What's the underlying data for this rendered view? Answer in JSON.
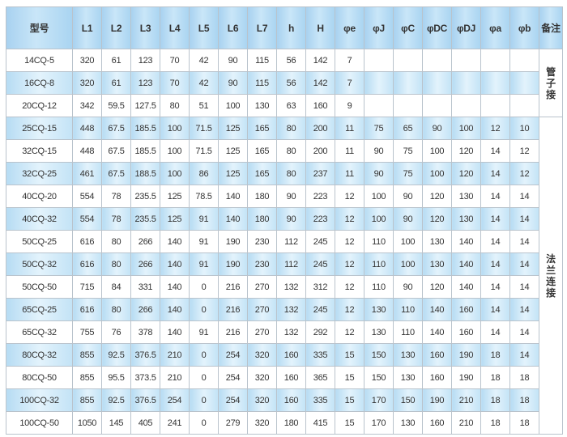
{
  "headers": [
    "型号",
    "L1",
    "L2",
    "L3",
    "L4",
    "L5",
    "L6",
    "L7",
    "h",
    "H",
    "φe",
    "φJ",
    "φC",
    "φDC",
    "φDJ",
    "φa",
    "φb",
    "备注"
  ],
  "remarks": [
    {
      "label": "管子接",
      "rows": 3
    },
    {
      "label": "法兰连接",
      "rows": 14
    }
  ],
  "rows": [
    [
      "14CQ-5",
      "320",
      "61",
      "123",
      "70",
      "42",
      "90",
      "115",
      "56",
      "142",
      "7",
      "",
      "",
      "",
      "",
      "",
      ""
    ],
    [
      "16CQ-8",
      "320",
      "61",
      "123",
      "70",
      "42",
      "90",
      "115",
      "56",
      "142",
      "7",
      "",
      "",
      "",
      "",
      "",
      ""
    ],
    [
      "20CQ-12",
      "342",
      "59.5",
      "127.5",
      "80",
      "51",
      "100",
      "130",
      "63",
      "160",
      "9",
      "",
      "",
      "",
      "",
      "",
      ""
    ],
    [
      "25CQ-15",
      "448",
      "67.5",
      "185.5",
      "100",
      "71.5",
      "125",
      "165",
      "80",
      "200",
      "11",
      "75",
      "65",
      "90",
      "100",
      "12",
      "10"
    ],
    [
      "32CQ-15",
      "448",
      "67.5",
      "185.5",
      "100",
      "71.5",
      "125",
      "165",
      "80",
      "200",
      "11",
      "90",
      "75",
      "100",
      "120",
      "14",
      "12"
    ],
    [
      "32CQ-25",
      "461",
      "67.5",
      "188.5",
      "100",
      "86",
      "125",
      "165",
      "80",
      "237",
      "11",
      "90",
      "75",
      "100",
      "120",
      "14",
      "12"
    ],
    [
      "40CQ-20",
      "554",
      "78",
      "235.5",
      "125",
      "78.5",
      "140",
      "180",
      "90",
      "223",
      "12",
      "100",
      "90",
      "120",
      "130",
      "14",
      "14"
    ],
    [
      "40CQ-32",
      "554",
      "78",
      "235.5",
      "125",
      "91",
      "140",
      "180",
      "90",
      "223",
      "12",
      "100",
      "90",
      "120",
      "130",
      "14",
      "14"
    ],
    [
      "50CQ-25",
      "616",
      "80",
      "266",
      "140",
      "91",
      "190",
      "230",
      "112",
      "245",
      "12",
      "110",
      "100",
      "130",
      "140",
      "14",
      "14"
    ],
    [
      "50CQ-32",
      "616",
      "80",
      "266",
      "140",
      "91",
      "190",
      "230",
      "112",
      "245",
      "12",
      "110",
      "100",
      "130",
      "140",
      "14",
      "14"
    ],
    [
      "50CQ-50",
      "715",
      "84",
      "331",
      "140",
      "0",
      "216",
      "270",
      "132",
      "312",
      "12",
      "110",
      "90",
      "120",
      "140",
      "14",
      "14"
    ],
    [
      "65CQ-25",
      "616",
      "80",
      "266",
      "140",
      "0",
      "216",
      "270",
      "132",
      "245",
      "12",
      "130",
      "110",
      "140",
      "160",
      "14",
      "14"
    ],
    [
      "65CQ-32",
      "755",
      "76",
      "378",
      "140",
      "91",
      "216",
      "270",
      "132",
      "292",
      "12",
      "130",
      "110",
      "140",
      "160",
      "14",
      "14"
    ],
    [
      "80CQ-32",
      "855",
      "92.5",
      "376.5",
      "210",
      "0",
      "254",
      "320",
      "160",
      "335",
      "15",
      "150",
      "130",
      "160",
      "190",
      "18",
      "14"
    ],
    [
      "80CQ-50",
      "855",
      "95.5",
      "373.5",
      "210",
      "0",
      "254",
      "320",
      "160",
      "365",
      "15",
      "150",
      "130",
      "160",
      "190",
      "18",
      "18"
    ],
    [
      "100CQ-32",
      "855",
      "92.5",
      "376.5",
      "254",
      "0",
      "254",
      "320",
      "160",
      "335",
      "15",
      "170",
      "150",
      "190",
      "210",
      "18",
      "18"
    ],
    [
      "100CQ-50",
      "1050",
      "145",
      "405",
      "241",
      "0",
      "279",
      "320",
      "180",
      "415",
      "15",
      "170",
      "130",
      "160",
      "210",
      "18",
      "18"
    ]
  ]
}
